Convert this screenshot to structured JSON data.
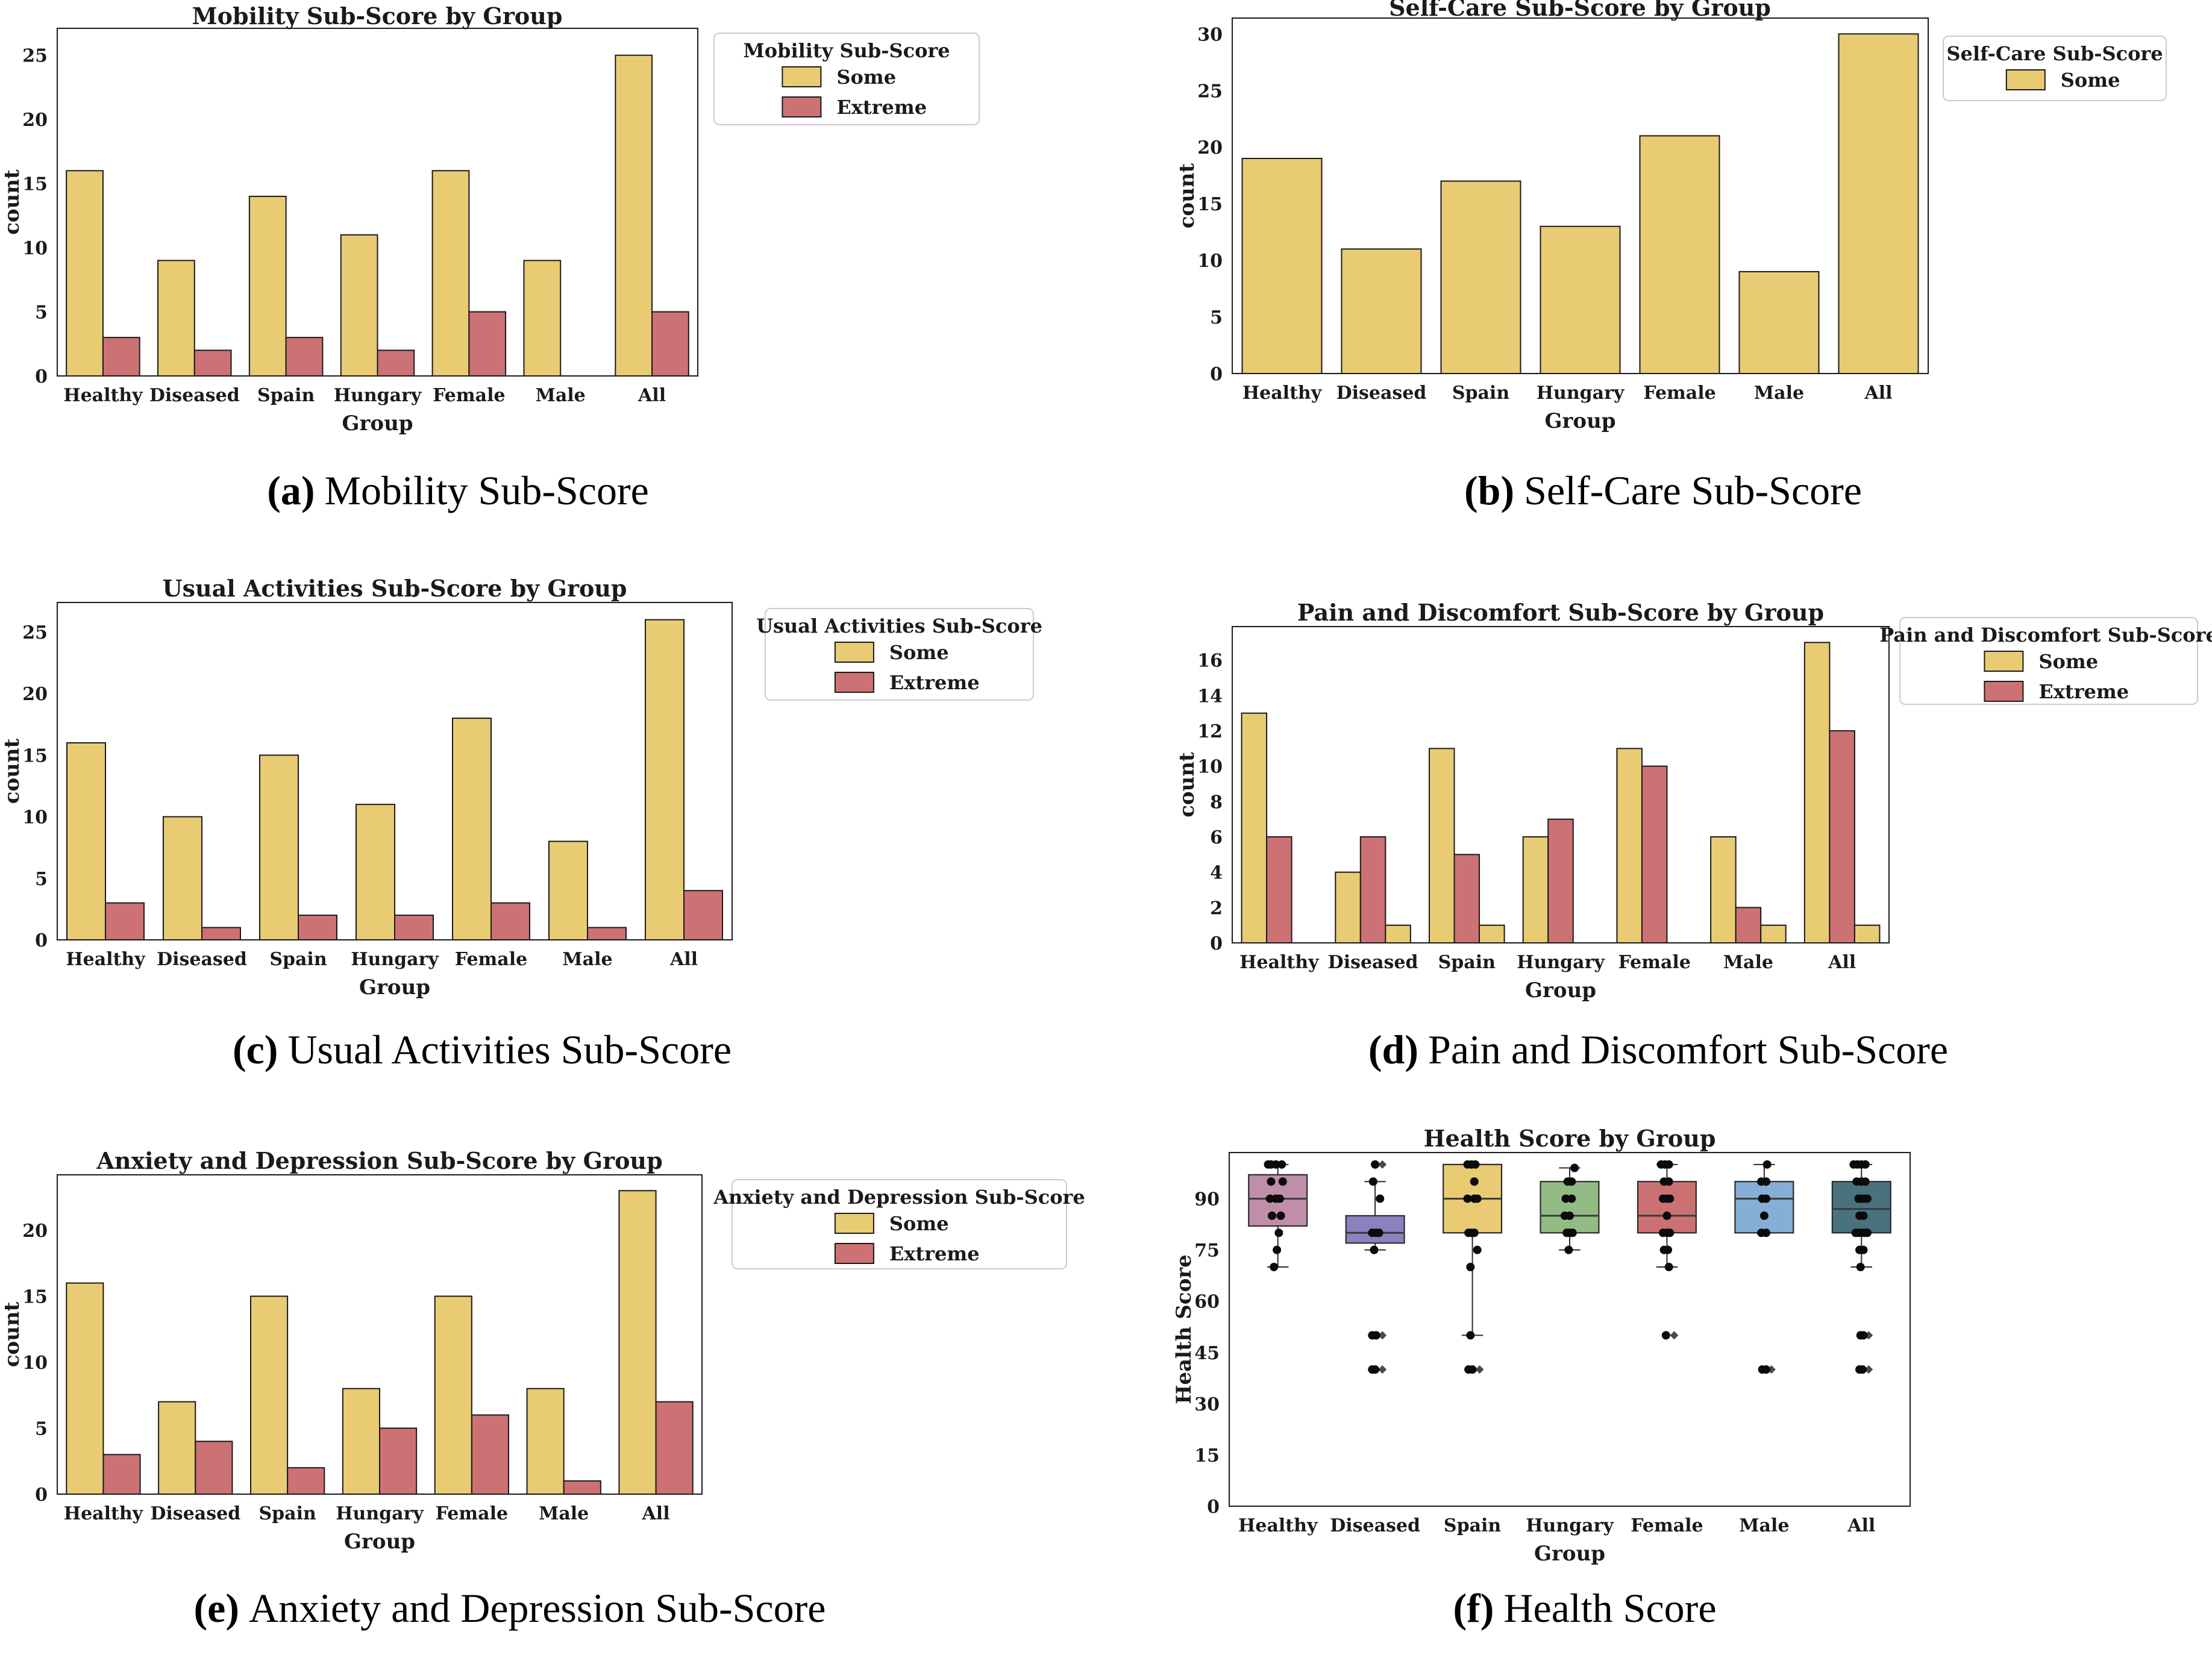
{
  "figure": {
    "captions": [
      {
        "label": "(a)",
        "text": "Mobility Sub-Score"
      },
      {
        "label": "(b)",
        "text": "Self-Care Sub-Score"
      },
      {
        "label": "(c)",
        "text": "Usual Activities Sub-Score"
      },
      {
        "label": "(d)",
        "text": "Pain and Discomfort Sub-Score"
      },
      {
        "label": "(e)",
        "text": "Anxiety and Depression Sub-Score"
      },
      {
        "label": "(f)",
        "text": "Health Score"
      }
    ]
  },
  "palette": {
    "background": "#ffffff",
    "spine": "#1a1a1a",
    "bar_edge": "#1a1a1a",
    "box_edge": "#2b2b2b",
    "median": "#3a3a3a",
    "point": "#0b0b0b",
    "flier": "#4a4a4a",
    "legend_border": "#cbcbcb",
    "text": "#1a1a1a",
    "some": "#E9CB74",
    "extreme": "#CC7274"
  },
  "chart_data": [
    {
      "id": "a",
      "type": "bar",
      "title": "Mobility Sub-Score by Group",
      "xlabel": "Group",
      "ylabel": "count",
      "categories": [
        "Healthy",
        "Diseased",
        "Spain",
        "Hungary",
        "Female",
        "Male",
        "All"
      ],
      "yticks": [
        0,
        5,
        10,
        15,
        20,
        25
      ],
      "ylim": [
        0,
        27.1
      ],
      "legend": {
        "title": "Mobility Sub-Score",
        "entries": [
          "Some",
          "Extreme"
        ],
        "position": "upper right outside"
      },
      "series": [
        {
          "name": "Some",
          "color": "#E9CB74",
          "values": [
            16,
            9,
            14,
            11,
            16,
            9,
            25
          ]
        },
        {
          "name": "Extreme",
          "color": "#CC7274",
          "values": [
            3,
            2,
            3,
            2,
            5,
            0,
            5
          ]
        }
      ]
    },
    {
      "id": "b",
      "type": "bar",
      "title": "Self-Care Sub-Score by Group",
      "xlabel": "Group",
      "ylabel": "count",
      "categories": [
        "Healthy",
        "Diseased",
        "Spain",
        "Hungary",
        "Female",
        "Male",
        "All"
      ],
      "yticks": [
        0,
        5,
        10,
        15,
        20,
        25,
        30
      ],
      "ylim": [
        0,
        31.4
      ],
      "legend": {
        "title": "Self-Care Sub-Score",
        "entries": [
          "Some"
        ],
        "position": "upper right outside"
      },
      "series": [
        {
          "name": "Some",
          "color": "#E9CB74",
          "values": [
            19,
            11,
            17,
            13,
            21,
            9,
            30
          ]
        }
      ]
    },
    {
      "id": "c",
      "type": "bar",
      "title": "Usual Activities Sub-Score by Group",
      "xlabel": "Group",
      "ylabel": "count",
      "categories": [
        "Healthy",
        "Diseased",
        "Spain",
        "Hungary",
        "Female",
        "Male",
        "All"
      ],
      "yticks": [
        0,
        5,
        10,
        15,
        20,
        25
      ],
      "ylim": [
        0,
        27.4
      ],
      "legend": {
        "title": "Usual Activities Sub-Score",
        "entries": [
          "Some",
          "Extreme"
        ],
        "position": "upper right outside"
      },
      "series": [
        {
          "name": "Some",
          "color": "#E9CB74",
          "values": [
            16,
            10,
            15,
            11,
            18,
            8,
            26
          ]
        },
        {
          "name": "Extreme",
          "color": "#CC7274",
          "values": [
            3,
            1,
            2,
            2,
            3,
            1,
            4
          ]
        }
      ]
    },
    {
      "id": "d",
      "type": "bar",
      "title": "Pain and Discomfort Sub-Score by Group",
      "xlabel": "Group",
      "ylabel": "count",
      "categories": [
        "Healthy",
        "Diseased",
        "Spain",
        "Hungary",
        "Female",
        "Male",
        "All"
      ],
      "yticks": [
        0,
        2,
        4,
        6,
        8,
        10,
        12,
        14,
        16
      ],
      "ylim": [
        0,
        17.9
      ],
      "legend": {
        "title": "Pain and Discomfort Sub-Score",
        "entries": [
          "Some",
          "Extreme"
        ],
        "position": "upper right outside"
      },
      "series": [
        {
          "name": "Some",
          "color": "#E9CB74",
          "values": [
            13,
            4,
            11,
            6,
            11,
            6,
            17
          ]
        },
        {
          "name": "Extreme",
          "color": "#CC7274",
          "values": [
            6,
            6,
            5,
            7,
            10,
            2,
            12
          ]
        },
        {
          "name": "",
          "color": "#E9CB74",
          "values": [
            0,
            1,
            1,
            0,
            0,
            1,
            1
          ]
        }
      ]
    },
    {
      "id": "e",
      "type": "bar",
      "title": "Anxiety and Depression Sub-Score by Group",
      "xlabel": "Group",
      "ylabel": "count",
      "categories": [
        "Healthy",
        "Diseased",
        "Spain",
        "Hungary",
        "Female",
        "Male",
        "All"
      ],
      "yticks": [
        0,
        5,
        10,
        15,
        20
      ],
      "ylim": [
        0,
        24.2
      ],
      "legend": {
        "title": "Anxiety and Depression Sub-Score",
        "entries": [
          "Some",
          "Extreme"
        ],
        "position": "upper right outside"
      },
      "series": [
        {
          "name": "Some",
          "color": "#E9CB74",
          "values": [
            16,
            7,
            15,
            8,
            15,
            8,
            23
          ]
        },
        {
          "name": "Extreme",
          "color": "#CC7274",
          "values": [
            3,
            4,
            2,
            5,
            6,
            1,
            7
          ]
        }
      ]
    },
    {
      "id": "f",
      "type": "box",
      "title": "Health Score by Group",
      "xlabel": "Group",
      "ylabel": "Health Score",
      "categories": [
        "Healthy",
        "Diseased",
        "Spain",
        "Hungary",
        "Female",
        "Male",
        "All"
      ],
      "yticks": [
        0,
        15,
        30,
        45,
        60,
        75,
        90
      ],
      "ylim": [
        0,
        103.5
      ],
      "groups": [
        {
          "name": "Healthy",
          "color": "#C08EA8",
          "whisker_low": 70,
          "q1": 82,
          "median": 90,
          "q3": 97,
          "whisker_high": 100,
          "fliers": [],
          "points": [
            [
              100,
              -0.07
            ],
            [
              100,
              -0.1
            ],
            [
              100,
              -0.02
            ],
            [
              100,
              0.04
            ],
            [
              95,
              -0.07
            ],
            [
              95,
              0.05
            ],
            [
              90,
              -0.08
            ],
            [
              90,
              -0.02
            ],
            [
              90,
              0.02
            ],
            [
              85,
              -0.06
            ],
            [
              85,
              0.03
            ],
            [
              80,
              0.01
            ],
            [
              75,
              -0.01
            ],
            [
              70,
              -0.04
            ]
          ]
        },
        {
          "name": "Diseased",
          "color": "#8A82BE",
          "whisker_low": 75,
          "q1": 77,
          "median": 80,
          "q3": 85,
          "whisker_high": 95,
          "fliers": [
            100,
            50,
            40
          ],
          "points": [
            [
              100,
              0.0
            ],
            [
              95,
              -0.02
            ],
            [
              90,
              0.05
            ],
            [
              80,
              -0.03
            ],
            [
              80,
              0.01
            ],
            [
              80,
              0.04
            ],
            [
              75,
              -0.01
            ],
            [
              50,
              -0.03
            ],
            [
              50,
              0.01
            ],
            [
              40,
              -0.03
            ],
            [
              40,
              0.0
            ]
          ]
        },
        {
          "name": "Spain",
          "color": "#E9CB74",
          "whisker_low": 50,
          "q1": 80,
          "median": 90,
          "q3": 100,
          "whisker_high": 100,
          "fliers": [
            40
          ],
          "points": [
            [
              100,
              -0.05
            ],
            [
              100,
              -0.01
            ],
            [
              100,
              0.03
            ],
            [
              95,
              0.02
            ],
            [
              90,
              -0.05
            ],
            [
              90,
              0.02
            ],
            [
              90,
              0.05
            ],
            [
              80,
              -0.04
            ],
            [
              80,
              -0.01
            ],
            [
              80,
              0.02
            ],
            [
              75,
              0.05
            ],
            [
              70,
              -0.02
            ],
            [
              50,
              -0.02
            ],
            [
              40,
              -0.04
            ],
            [
              40,
              0.0
            ]
          ]
        },
        {
          "name": "Hungary",
          "color": "#93BC85",
          "whisker_low": 75,
          "q1": 80,
          "median": 85,
          "q3": 95,
          "whisker_high": 99,
          "fliers": [],
          "points": [
            [
              99,
              0.05
            ],
            [
              95,
              -0.02
            ],
            [
              95,
              0.02
            ],
            [
              90,
              -0.04
            ],
            [
              90,
              0.02
            ],
            [
              85,
              -0.05
            ],
            [
              85,
              0.0
            ],
            [
              80,
              -0.03
            ],
            [
              80,
              0.0
            ],
            [
              80,
              0.03
            ],
            [
              75,
              -0.01
            ]
          ]
        },
        {
          "name": "Female",
          "color": "#CC7172",
          "whisker_low": 70,
          "q1": 80,
          "median": 85,
          "q3": 95,
          "whisker_high": 100,
          "fliers": [
            50
          ],
          "points": [
            [
              100,
              -0.06
            ],
            [
              100,
              -0.02
            ],
            [
              100,
              0.02
            ],
            [
              95,
              -0.03
            ],
            [
              95,
              0.02
            ],
            [
              90,
              -0.04
            ],
            [
              90,
              0.0
            ],
            [
              90,
              0.03
            ],
            [
              85,
              0.0
            ],
            [
              80,
              -0.04
            ],
            [
              80,
              0.0
            ],
            [
              80,
              0.03
            ],
            [
              75,
              -0.03
            ],
            [
              75,
              0.01
            ],
            [
              70,
              0.02
            ],
            [
              50,
              -0.01
            ]
          ]
        },
        {
          "name": "Male",
          "color": "#85AFD5",
          "whisker_low": 80,
          "q1": 80,
          "median": 90,
          "q3": 95,
          "whisker_high": 100,
          "fliers": [
            40
          ],
          "points": [
            [
              100,
              0.03
            ],
            [
              95,
              -0.03
            ],
            [
              95,
              0.02
            ],
            [
              90,
              -0.02
            ],
            [
              90,
              0.02
            ],
            [
              85,
              0.0
            ],
            [
              80,
              -0.03
            ],
            [
              80,
              0.02
            ],
            [
              40,
              -0.02
            ],
            [
              40,
              0.02
            ]
          ]
        },
        {
          "name": "All",
          "color": "#49727F",
          "whisker_low": 70,
          "q1": 80,
          "median": 87,
          "q3": 95,
          "whisker_high": 100,
          "fliers": [
            50,
            40
          ],
          "points": [
            [
              100,
              -0.08
            ],
            [
              100,
              -0.04
            ],
            [
              100,
              0.0
            ],
            [
              100,
              0.04
            ],
            [
              95,
              -0.05
            ],
            [
              95,
              0.0
            ],
            [
              95,
              0.04
            ],
            [
              90,
              -0.03
            ],
            [
              90,
              0.0
            ],
            [
              90,
              0.03
            ],
            [
              90,
              0.06
            ],
            [
              85,
              -0.02
            ],
            [
              85,
              0.02
            ],
            [
              80,
              -0.06
            ],
            [
              80,
              -0.03
            ],
            [
              80,
              0.0
            ],
            [
              80,
              0.03
            ],
            [
              80,
              0.06
            ],
            [
              75,
              -0.02
            ],
            [
              75,
              0.02
            ],
            [
              70,
              -0.01
            ],
            [
              50,
              -0.01
            ],
            [
              50,
              0.02
            ],
            [
              40,
              -0.02
            ],
            [
              40,
              0.01
            ]
          ]
        }
      ]
    }
  ]
}
